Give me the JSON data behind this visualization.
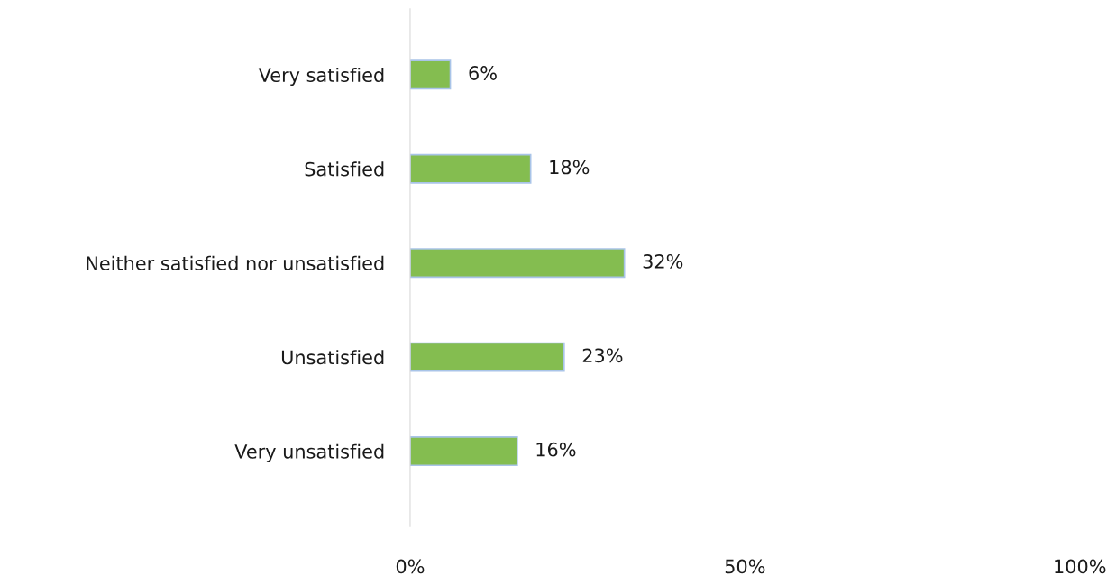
{
  "chart_data": {
    "type": "bar",
    "orientation": "horizontal",
    "categories": [
      "Very satisfied",
      "Satisfied",
      "Neither satisfied nor unsatisfied",
      "Unsatisfied",
      "Very unsatisfied"
    ],
    "values": [
      6,
      18,
      32,
      23,
      16
    ],
    "value_labels": [
      "6%",
      "18%",
      "32%",
      "23%",
      "16%"
    ],
    "color": "#84bd50",
    "xlim": [
      0,
      100
    ],
    "xticks": [
      {
        "value": 0,
        "label": "0%"
      },
      {
        "value": 50,
        "label": "50%"
      },
      {
        "value": 100,
        "label": "100%"
      }
    ],
    "grid": false,
    "legend": false
  }
}
